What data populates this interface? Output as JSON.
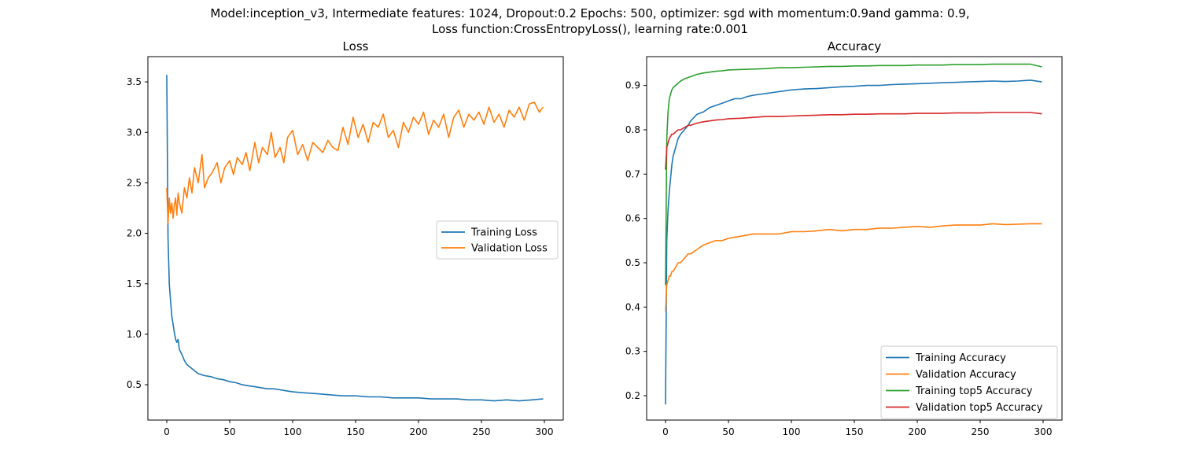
{
  "figure": {
    "suptitle_line1": "Model:inception_v3, Intermediate features: 1024, Dropout:0.2 Epochs: 500, optimizer: sgd with momentum:0.9and gamma: 0.9,",
    "suptitle_line2": "Loss function:CrossEntropyLoss(), learning rate:0.001"
  },
  "chart_data": [
    {
      "type": "line",
      "title": "Loss",
      "xlabel": "",
      "ylabel": "",
      "xlim": [
        -15,
        315
      ],
      "ylim": [
        0.15,
        3.75
      ],
      "xticks": [
        0,
        50,
        100,
        150,
        200,
        250,
        300
      ],
      "yticks": [
        0.5,
        1.0,
        1.5,
        2.0,
        2.5,
        3.0,
        3.5
      ],
      "ytick_labels": [
        "0.5",
        "1.0",
        "1.5",
        "2.0",
        "2.5",
        "3.0",
        "3.5"
      ],
      "grid": false,
      "legend_position": "center-right",
      "series": [
        {
          "name": "Training Loss",
          "color": "#1f77b4",
          "x": [
            0,
            1,
            2,
            3,
            4,
            5,
            6,
            7,
            8,
            9,
            10,
            12,
            14,
            16,
            18,
            20,
            25,
            30,
            35,
            40,
            45,
            50,
            55,
            60,
            65,
            70,
            75,
            80,
            85,
            90,
            95,
            100,
            110,
            120,
            130,
            140,
            150,
            160,
            170,
            180,
            190,
            200,
            210,
            220,
            230,
            240,
            250,
            260,
            270,
            280,
            290,
            299
          ],
          "y": [
            3.57,
            1.95,
            1.5,
            1.33,
            1.18,
            1.1,
            1.02,
            0.95,
            0.92,
            0.95,
            0.85,
            0.8,
            0.74,
            0.7,
            0.68,
            0.66,
            0.61,
            0.59,
            0.58,
            0.56,
            0.55,
            0.53,
            0.52,
            0.5,
            0.49,
            0.48,
            0.47,
            0.46,
            0.46,
            0.45,
            0.44,
            0.43,
            0.42,
            0.41,
            0.4,
            0.39,
            0.39,
            0.38,
            0.38,
            0.37,
            0.37,
            0.37,
            0.36,
            0.36,
            0.36,
            0.35,
            0.35,
            0.34,
            0.35,
            0.34,
            0.35,
            0.36
          ]
        },
        {
          "name": "Validation Loss",
          "color": "#ff7f0e",
          "x": [
            0,
            1,
            2,
            3,
            4,
            5,
            6,
            7,
            8,
            9,
            10,
            12,
            14,
            16,
            18,
            20,
            22,
            25,
            28,
            30,
            33,
            36,
            40,
            43,
            46,
            50,
            53,
            56,
            60,
            63,
            66,
            70,
            73,
            76,
            80,
            83,
            86,
            90,
            93,
            96,
            100,
            104,
            108,
            112,
            116,
            120,
            124,
            128,
            132,
            136,
            140,
            144,
            148,
            152,
            156,
            160,
            164,
            168,
            172,
            176,
            180,
            184,
            188,
            192,
            196,
            200,
            204,
            208,
            212,
            216,
            220,
            224,
            228,
            232,
            236,
            240,
            244,
            248,
            252,
            256,
            260,
            264,
            268,
            272,
            276,
            280,
            284,
            288,
            292,
            296,
            299
          ],
          "y": [
            2.45,
            2.1,
            2.35,
            2.2,
            2.3,
            2.15,
            2.28,
            2.35,
            2.18,
            2.4,
            2.3,
            2.2,
            2.45,
            2.35,
            2.55,
            2.4,
            2.65,
            2.5,
            2.78,
            2.45,
            2.55,
            2.6,
            2.7,
            2.5,
            2.65,
            2.72,
            2.58,
            2.75,
            2.68,
            2.8,
            2.62,
            2.9,
            2.7,
            2.85,
            2.78,
            3.0,
            2.75,
            2.85,
            2.7,
            2.95,
            3.02,
            2.78,
            2.88,
            2.72,
            2.9,
            2.85,
            2.8,
            2.92,
            2.85,
            2.82,
            3.05,
            2.88,
            3.15,
            2.95,
            3.08,
            2.9,
            3.1,
            3.05,
            3.18,
            2.95,
            3.02,
            2.85,
            3.1,
            3.0,
            3.15,
            3.08,
            3.2,
            2.98,
            3.12,
            3.05,
            3.18,
            2.95,
            3.15,
            3.22,
            3.05,
            3.18,
            3.12,
            3.2,
            3.08,
            3.25,
            3.1,
            3.18,
            3.05,
            3.22,
            3.15,
            3.25,
            3.12,
            3.28,
            3.3,
            3.2,
            3.25
          ]
        }
      ]
    },
    {
      "type": "line",
      "title": "Accuracy",
      "xlabel": "",
      "ylabel": "",
      "xlim": [
        -15,
        315
      ],
      "ylim": [
        0.145,
        0.965
      ],
      "xticks": [
        0,
        50,
        100,
        150,
        200,
        250,
        300
      ],
      "yticks": [
        0.2,
        0.3,
        0.4,
        0.5,
        0.6,
        0.7,
        0.8,
        0.9
      ],
      "ytick_labels": [
        "0.2",
        "0.3",
        "0.4",
        "0.5",
        "0.6",
        "0.7",
        "0.8",
        "0.9"
      ],
      "grid": false,
      "legend_position": "lower-right",
      "series": [
        {
          "name": "Training Accuracy",
          "color": "#1f77b4",
          "x": [
            0,
            1,
            2,
            3,
            4,
            5,
            6,
            7,
            8,
            10,
            12,
            15,
            18,
            20,
            25,
            30,
            35,
            40,
            45,
            50,
            55,
            60,
            65,
            70,
            80,
            90,
            100,
            110,
            120,
            130,
            140,
            150,
            160,
            170,
            180,
            190,
            200,
            210,
            220,
            230,
            240,
            250,
            260,
            270,
            280,
            290,
            299
          ],
          "y": [
            0.18,
            0.55,
            0.62,
            0.66,
            0.69,
            0.72,
            0.74,
            0.75,
            0.76,
            0.78,
            0.79,
            0.8,
            0.81,
            0.82,
            0.835,
            0.84,
            0.85,
            0.855,
            0.86,
            0.865,
            0.87,
            0.87,
            0.875,
            0.878,
            0.882,
            0.886,
            0.89,
            0.892,
            0.893,
            0.895,
            0.897,
            0.898,
            0.9,
            0.9,
            0.902,
            0.903,
            0.904,
            0.905,
            0.906,
            0.907,
            0.908,
            0.909,
            0.91,
            0.909,
            0.91,
            0.912,
            0.908
          ]
        },
        {
          "name": "Validation Accuracy",
          "color": "#ff7f0e",
          "x": [
            0,
            1,
            2,
            3,
            4,
            5,
            6,
            8,
            10,
            12,
            15,
            18,
            20,
            25,
            30,
            35,
            40,
            45,
            50,
            60,
            70,
            80,
            90,
            100,
            110,
            120,
            130,
            140,
            150,
            160,
            170,
            180,
            190,
            200,
            210,
            220,
            230,
            240,
            250,
            260,
            270,
            280,
            290,
            299
          ],
          "y": [
            0.39,
            0.45,
            0.46,
            0.47,
            0.47,
            0.48,
            0.48,
            0.49,
            0.5,
            0.5,
            0.51,
            0.52,
            0.52,
            0.53,
            0.54,
            0.545,
            0.55,
            0.55,
            0.555,
            0.56,
            0.565,
            0.565,
            0.565,
            0.57,
            0.57,
            0.572,
            0.575,
            0.572,
            0.575,
            0.575,
            0.578,
            0.578,
            0.58,
            0.582,
            0.58,
            0.583,
            0.585,
            0.585,
            0.585,
            0.588,
            0.586,
            0.587,
            0.588,
            0.588
          ]
        },
        {
          "name": "Training top5 Accuracy",
          "color": "#2ca02c",
          "x": [
            0,
            1,
            2,
            3,
            4,
            5,
            6,
            8,
            10,
            12,
            15,
            18,
            20,
            25,
            30,
            35,
            40,
            45,
            50,
            60,
            70,
            80,
            90,
            100,
            110,
            120,
            130,
            140,
            150,
            160,
            170,
            180,
            190,
            200,
            210,
            220,
            230,
            240,
            250,
            260,
            270,
            280,
            290,
            299
          ],
          "y": [
            0.45,
            0.78,
            0.84,
            0.87,
            0.88,
            0.89,
            0.895,
            0.9,
            0.905,
            0.91,
            0.915,
            0.918,
            0.92,
            0.925,
            0.928,
            0.93,
            0.932,
            0.933,
            0.935,
            0.936,
            0.937,
            0.938,
            0.94,
            0.94,
            0.941,
            0.942,
            0.943,
            0.943,
            0.944,
            0.944,
            0.945,
            0.945,
            0.945,
            0.946,
            0.946,
            0.946,
            0.947,
            0.947,
            0.947,
            0.948,
            0.948,
            0.948,
            0.948,
            0.942
          ]
        },
        {
          "name": "Validation top5 Accuracy",
          "color": "#d62728",
          "x": [
            0,
            1,
            2,
            3,
            4,
            5,
            6,
            8,
            10,
            12,
            15,
            18,
            20,
            25,
            30,
            35,
            40,
            45,
            50,
            60,
            70,
            80,
            90,
            100,
            110,
            120,
            130,
            140,
            150,
            160,
            170,
            180,
            190,
            200,
            210,
            220,
            230,
            240,
            250,
            260,
            270,
            280,
            290,
            299
          ],
          "y": [
            0.71,
            0.76,
            0.77,
            0.78,
            0.785,
            0.79,
            0.79,
            0.795,
            0.8,
            0.8,
            0.805,
            0.81,
            0.81,
            0.815,
            0.818,
            0.82,
            0.822,
            0.823,
            0.825,
            0.826,
            0.828,
            0.83,
            0.83,
            0.831,
            0.832,
            0.833,
            0.834,
            0.834,
            0.835,
            0.835,
            0.836,
            0.836,
            0.836,
            0.837,
            0.837,
            0.837,
            0.838,
            0.838,
            0.838,
            0.839,
            0.839,
            0.839,
            0.839,
            0.836
          ]
        }
      ]
    }
  ]
}
